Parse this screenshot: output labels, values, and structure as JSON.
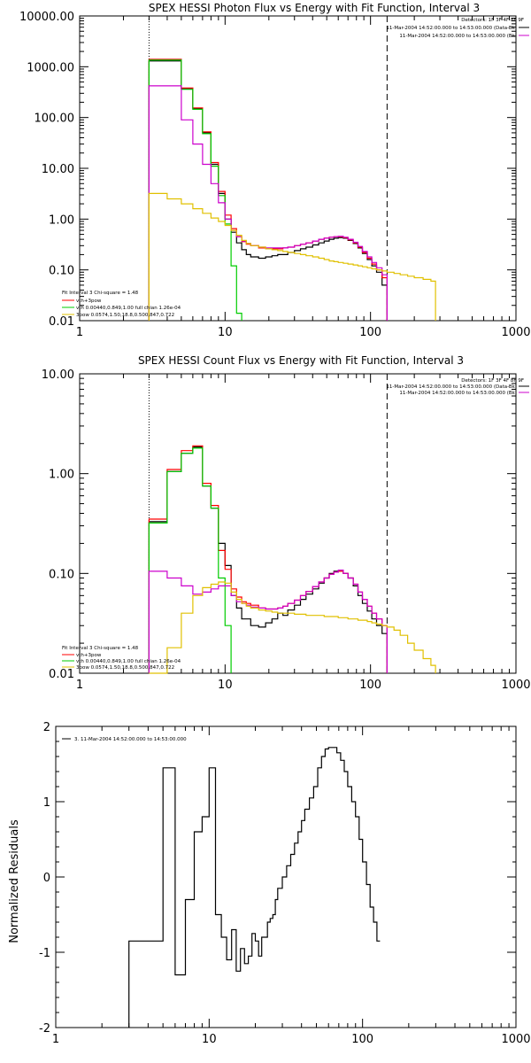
{
  "chart_data": [
    {
      "type": "line",
      "title": "SPEX HESSI Photon Flux vs Energy with Fit Function, Interval 3",
      "xscale": "log",
      "yscale": "log",
      "xlim": [
        1,
        1000
      ],
      "ylim": [
        0.01,
        10000
      ],
      "xticklabels": [
        "1",
        "10",
        "100",
        "1000"
      ],
      "yticklabels": [
        "0.01",
        "0.10",
        "1.00",
        "10.00",
        "100.00",
        "1000.00",
        "10000.00"
      ],
      "legend_topright": [
        "Detectors: 1F 3F 4F 8F 9F",
        "11-Mar-2004 14:52:00.000 to 14:53:00.000 (Data-Bk)",
        "11-Mar-2004 14:52:00.000 to 14:53:00.000 (Bk)"
      ],
      "legend_bottomleft": [
        "Fit Interval 3   Chi-square = 1.48",
        "vth+3pow",
        "vth 0.00440,0.849,1.00  full chian 1.26e-04",
        "3pow 0.0574,1.50,18.8,0.500,847,0.722"
      ],
      "vlines": [
        3,
        130
      ],
      "series": [
        {
          "name": "Data-Bk",
          "color": "#000000",
          "x": [
            3,
            3.5,
            4,
            4.5,
            5,
            5.5,
            6,
            6.5,
            7,
            7.5,
            8,
            8.5,
            9,
            9.5,
            10,
            11,
            12,
            13,
            14,
            15,
            17,
            19,
            21,
            23,
            25,
            27,
            30,
            33,
            36,
            40,
            44,
            48,
            52,
            56,
            60,
            65,
            70,
            76,
            82,
            88,
            95,
            102,
            110,
            120,
            130
          ],
          "y": [
            1300,
            1300,
            1300,
            1300,
            370,
            370,
            150,
            150,
            50,
            50,
            12,
            12,
            3.2,
            3.2,
            1.0,
            0.55,
            0.34,
            0.25,
            0.2,
            0.18,
            0.17,
            0.18,
            0.19,
            0.2,
            0.2,
            0.22,
            0.24,
            0.26,
            0.28,
            0.31,
            0.34,
            0.37,
            0.4,
            0.42,
            0.43,
            0.42,
            0.38,
            0.33,
            0.27,
            0.21,
            0.16,
            0.12,
            0.09,
            0.05,
            0.01
          ]
        },
        {
          "name": "vth+3pow",
          "color": "#ff0000",
          "x": [
            3,
            3.5,
            4,
            4.5,
            5,
            5.5,
            6,
            6.5,
            7,
            7.5,
            8,
            8.5,
            9,
            9.5,
            10,
            11,
            12,
            13,
            14,
            15,
            17,
            19,
            21,
            23,
            25,
            27,
            30,
            33,
            36,
            40,
            44,
            48,
            52,
            56,
            60,
            65,
            70,
            76,
            82,
            88,
            95,
            102,
            110,
            120,
            130
          ],
          "y": [
            1400,
            1400,
            1400,
            1400,
            380,
            380,
            155,
            155,
            52,
            52,
            13,
            13,
            3.5,
            3.5,
            1.2,
            0.65,
            0.45,
            0.36,
            0.32,
            0.3,
            0.27,
            0.26,
            0.26,
            0.26,
            0.27,
            0.28,
            0.3,
            0.32,
            0.34,
            0.37,
            0.4,
            0.42,
            0.44,
            0.45,
            0.45,
            0.43,
            0.39,
            0.34,
            0.28,
            0.22,
            0.17,
            0.13,
            0.1,
            0.07,
            0.01
          ]
        },
        {
          "name": "vth",
          "color": "#00cc00",
          "x": [
            3,
            3.5,
            4,
            4.5,
            5,
            5.5,
            6,
            6.5,
            7,
            7.5,
            8,
            8.5,
            9,
            9.5,
            10,
            11,
            12,
            13
          ],
          "y": [
            1350,
            1350,
            1350,
            1350,
            360,
            360,
            145,
            145,
            48,
            48,
            11,
            11,
            2.9,
            2.9,
            0.8,
            0.12,
            0.014,
            0.01
          ]
        },
        {
          "name": "3pow (Bk)",
          "color": "#cc00cc",
          "x": [
            3,
            3.5,
            4,
            4.5,
            5,
            5.5,
            6,
            6.5,
            7,
            7.5,
            8,
            8.5,
            9,
            9.5,
            10,
            11,
            12,
            13,
            14,
            15,
            17,
            19,
            21,
            23,
            25,
            27,
            30,
            33,
            36,
            40,
            44,
            48,
            52,
            56,
            60,
            65,
            70,
            76,
            82,
            88,
            95,
            102,
            110,
            120,
            130
          ],
          "y": [
            420,
            420,
            420,
            420,
            90,
            90,
            30,
            30,
            12,
            12,
            5,
            5,
            2.1,
            2.1,
            1.0,
            0.6,
            0.45,
            0.37,
            0.33,
            0.3,
            0.28,
            0.27,
            0.27,
            0.27,
            0.27,
            0.28,
            0.3,
            0.32,
            0.34,
            0.37,
            0.4,
            0.42,
            0.44,
            0.45,
            0.46,
            0.44,
            0.4,
            0.35,
            0.29,
            0.23,
            0.18,
            0.14,
            0.11,
            0.08,
            0.01
          ]
        },
        {
          "name": "3pow",
          "color": "#e0c000",
          "x": [
            3,
            4,
            5,
            6,
            7,
            8,
            9,
            10,
            11,
            12,
            13,
            14,
            15,
            17,
            19,
            21,
            23,
            25,
            27,
            30,
            33,
            36,
            40,
            44,
            48,
            52,
            56,
            60,
            65,
            70,
            76,
            82,
            88,
            95,
            102,
            110,
            120,
            130,
            145,
            160,
            180,
            200,
            230,
            260,
            280
          ],
          "y": [
            3.2,
            2.5,
            2.0,
            1.6,
            1.3,
            1.05,
            0.9,
            0.75,
            0.6,
            0.48,
            0.38,
            0.33,
            0.3,
            0.28,
            0.26,
            0.25,
            0.24,
            0.23,
            0.22,
            0.21,
            0.2,
            0.19,
            0.18,
            0.17,
            0.16,
            0.15,
            0.145,
            0.14,
            0.135,
            0.13,
            0.125,
            0.12,
            0.115,
            0.11,
            0.105,
            0.1,
            0.095,
            0.09,
            0.085,
            0.08,
            0.075,
            0.07,
            0.065,
            0.06,
            0.01
          ]
        }
      ]
    },
    {
      "type": "line",
      "title": "SPEX HESSI Count Flux vs Energy with Fit Function, Interval 3",
      "xscale": "log",
      "yscale": "log",
      "xlim": [
        1,
        1000
      ],
      "ylim": [
        0.01,
        10
      ],
      "xticklabels": [
        "1",
        "10",
        "100",
        "1000"
      ],
      "yticklabels": [
        "0.01",
        "0.10",
        "1.00",
        "10.00"
      ],
      "legend_topright": [
        "Detectors: 1F 3F 4F 8F 9F",
        "11-Mar-2004 14:52:00.000 to 14:53:00.000 (Data-Bk)",
        "11-Mar-2004 14:52:00.000 to 14:53:00.000 (Bk)"
      ],
      "legend_bottomleft": [
        "Fit Interval 3   Chi-square = 1.48",
        "vth+3pow",
        "vth 0.00440,0.849,1.00  full chian 1.26e-04",
        "3pow 0.0574,1.50,18.8,0.500,847,0.722"
      ],
      "vlines": [
        3,
        130
      ],
      "series": [
        {
          "name": "Data-Bk",
          "color": "#000000",
          "x": [
            3,
            3.5,
            4,
            4.5,
            5,
            5.5,
            6,
            6.5,
            7,
            7.5,
            8,
            8.5,
            9,
            9.5,
            10,
            11,
            12,
            13,
            14,
            15,
            17,
            19,
            21,
            23,
            25,
            27,
            30,
            33,
            36,
            40,
            44,
            48,
            52,
            56,
            60,
            65,
            70,
            76,
            82,
            88,
            95,
            102,
            110,
            120,
            130
          ],
          "y": [
            0.33,
            0.33,
            1.05,
            1.05,
            1.6,
            1.6,
            1.85,
            1.85,
            0.75,
            0.75,
            0.45,
            0.45,
            0.2,
            0.2,
            0.12,
            0.06,
            0.045,
            0.035,
            0.035,
            0.03,
            0.029,
            0.032,
            0.035,
            0.04,
            0.038,
            0.043,
            0.048,
            0.055,
            0.062,
            0.07,
            0.08,
            0.09,
            0.1,
            0.105,
            0.105,
            0.1,
            0.09,
            0.075,
            0.06,
            0.05,
            0.042,
            0.035,
            0.03,
            0.025,
            0.01
          ]
        },
        {
          "name": "vth+3pow",
          "color": "#ff0000",
          "x": [
            3,
            3.5,
            4,
            4.5,
            5,
            5.5,
            6,
            6.5,
            7,
            7.5,
            8,
            8.5,
            9,
            9.5,
            10,
            11,
            12,
            13,
            14,
            15,
            17,
            19,
            21,
            23,
            25,
            27,
            30,
            33,
            36,
            40,
            44,
            48,
            52,
            56,
            60,
            65,
            70,
            76,
            82,
            88,
            95,
            102,
            110,
            120,
            130
          ],
          "y": [
            0.35,
            0.35,
            1.1,
            1.1,
            1.7,
            1.7,
            1.9,
            1.9,
            0.8,
            0.8,
            0.48,
            0.48,
            0.17,
            0.17,
            0.11,
            0.07,
            0.058,
            0.052,
            0.05,
            0.048,
            0.045,
            0.044,
            0.044,
            0.045,
            0.047,
            0.05,
            0.054,
            0.06,
            0.066,
            0.074,
            0.082,
            0.09,
            0.098,
            0.103,
            0.105,
            0.1,
            0.09,
            0.078,
            0.065,
            0.055,
            0.047,
            0.04,
            0.035,
            0.03,
            0.01
          ]
        },
        {
          "name": "vth",
          "color": "#00cc00",
          "x": [
            3,
            3.5,
            4,
            4.5,
            5,
            5.5,
            6,
            6.5,
            7,
            7.5,
            8,
            8.5,
            9,
            9.5,
            10,
            11
          ],
          "y": [
            0.32,
            0.32,
            1.05,
            1.05,
            1.6,
            1.6,
            1.8,
            1.8,
            0.75,
            0.75,
            0.45,
            0.45,
            0.09,
            0.09,
            0.03,
            0.01
          ]
        },
        {
          "name": "3pow (Bk)",
          "color": "#cc00cc",
          "x": [
            3,
            4,
            5,
            6,
            7,
            8,
            9,
            10,
            11,
            12,
            13,
            14,
            15,
            17,
            19,
            21,
            23,
            25,
            27,
            30,
            33,
            36,
            40,
            44,
            48,
            52,
            56,
            60,
            65,
            70,
            76,
            82,
            88,
            95,
            102,
            110,
            120,
            130
          ],
          "y": [
            0.105,
            0.09,
            0.075,
            0.062,
            0.065,
            0.07,
            0.075,
            0.075,
            0.06,
            0.052,
            0.05,
            0.048,
            0.046,
            0.045,
            0.044,
            0.044,
            0.045,
            0.047,
            0.05,
            0.054,
            0.06,
            0.066,
            0.074,
            0.082,
            0.09,
            0.098,
            0.103,
            0.108,
            0.1,
            0.09,
            0.078,
            0.065,
            0.055,
            0.047,
            0.04,
            0.035,
            0.03,
            0.01
          ]
        },
        {
          "name": "3pow",
          "color": "#e0c000",
          "x": [
            3,
            4,
            5,
            6,
            7,
            8,
            9,
            10,
            11,
            12,
            13,
            14,
            15,
            17,
            19,
            21,
            23,
            25,
            27,
            30,
            33,
            36,
            40,
            44,
            48,
            52,
            56,
            60,
            65,
            70,
            76,
            82,
            88,
            95,
            102,
            110,
            120,
            130,
            145,
            160,
            180,
            200,
            230,
            260,
            280
          ],
          "y": [
            0.01,
            0.018,
            0.04,
            0.06,
            0.072,
            0.078,
            0.082,
            0.08,
            0.065,
            0.055,
            0.05,
            0.047,
            0.045,
            0.043,
            0.042,
            0.041,
            0.04,
            0.04,
            0.04,
            0.039,
            0.039,
            0.038,
            0.038,
            0.038,
            0.037,
            0.037,
            0.037,
            0.036,
            0.036,
            0.035,
            0.035,
            0.034,
            0.034,
            0.033,
            0.032,
            0.031,
            0.03,
            0.029,
            0.027,
            0.024,
            0.02,
            0.017,
            0.014,
            0.012,
            0.01
          ]
        }
      ]
    },
    {
      "type": "line",
      "title": "",
      "xscale": "log",
      "xlim": [
        1,
        1000
      ],
      "ylim": [
        -2,
        2
      ],
      "xticklabels": [
        "1",
        "10",
        "100",
        "1000"
      ],
      "yticklabels": [
        "-2",
        "-1",
        "0",
        "1",
        "2"
      ],
      "ylabel": "Normalized Residuals",
      "legend": "3. 11-Mar-2004 14:52:00.000 to 14:53:00.000",
      "series": [
        {
          "name": "Residuals",
          "color": "#000000",
          "x": [
            3,
            3.5,
            4,
            4.5,
            5,
            5.5,
            6,
            6.5,
            7,
            7.5,
            8,
            8.5,
            9,
            9.5,
            10,
            11,
            12,
            13,
            14,
            15,
            16,
            17,
            18,
            19,
            20,
            21,
            22,
            23,
            24,
            25,
            26,
            27,
            28,
            30,
            32,
            34,
            36,
            38,
            40,
            42,
            45,
            48,
            51,
            54,
            57,
            60,
            64,
            68,
            72,
            76,
            80,
            85,
            90,
            95,
            100,
            106,
            112,
            118,
            124,
            130
          ],
          "y": [
            -0.85,
            -0.85,
            -0.85,
            -0.85,
            1.45,
            1.45,
            -1.3,
            -1.3,
            -0.3,
            -0.3,
            0.6,
            0.6,
            0.8,
            0.8,
            1.45,
            -0.5,
            -0.8,
            -1.1,
            -0.7,
            -1.25,
            -0.95,
            -1.15,
            -1.05,
            -0.75,
            -0.85,
            -1.05,
            -0.8,
            -0.8,
            -0.6,
            -0.55,
            -0.5,
            -0.3,
            -0.15,
            0,
            0.15,
            0.3,
            0.45,
            0.6,
            0.75,
            0.9,
            1.05,
            1.2,
            1.45,
            1.6,
            1.7,
            1.72,
            1.72,
            1.65,
            1.55,
            1.4,
            1.2,
            1.0,
            0.8,
            0.5,
            0.2,
            -0.1,
            -0.4,
            -0.6,
            -0.85,
            -0.85
          ]
        }
      ]
    }
  ]
}
